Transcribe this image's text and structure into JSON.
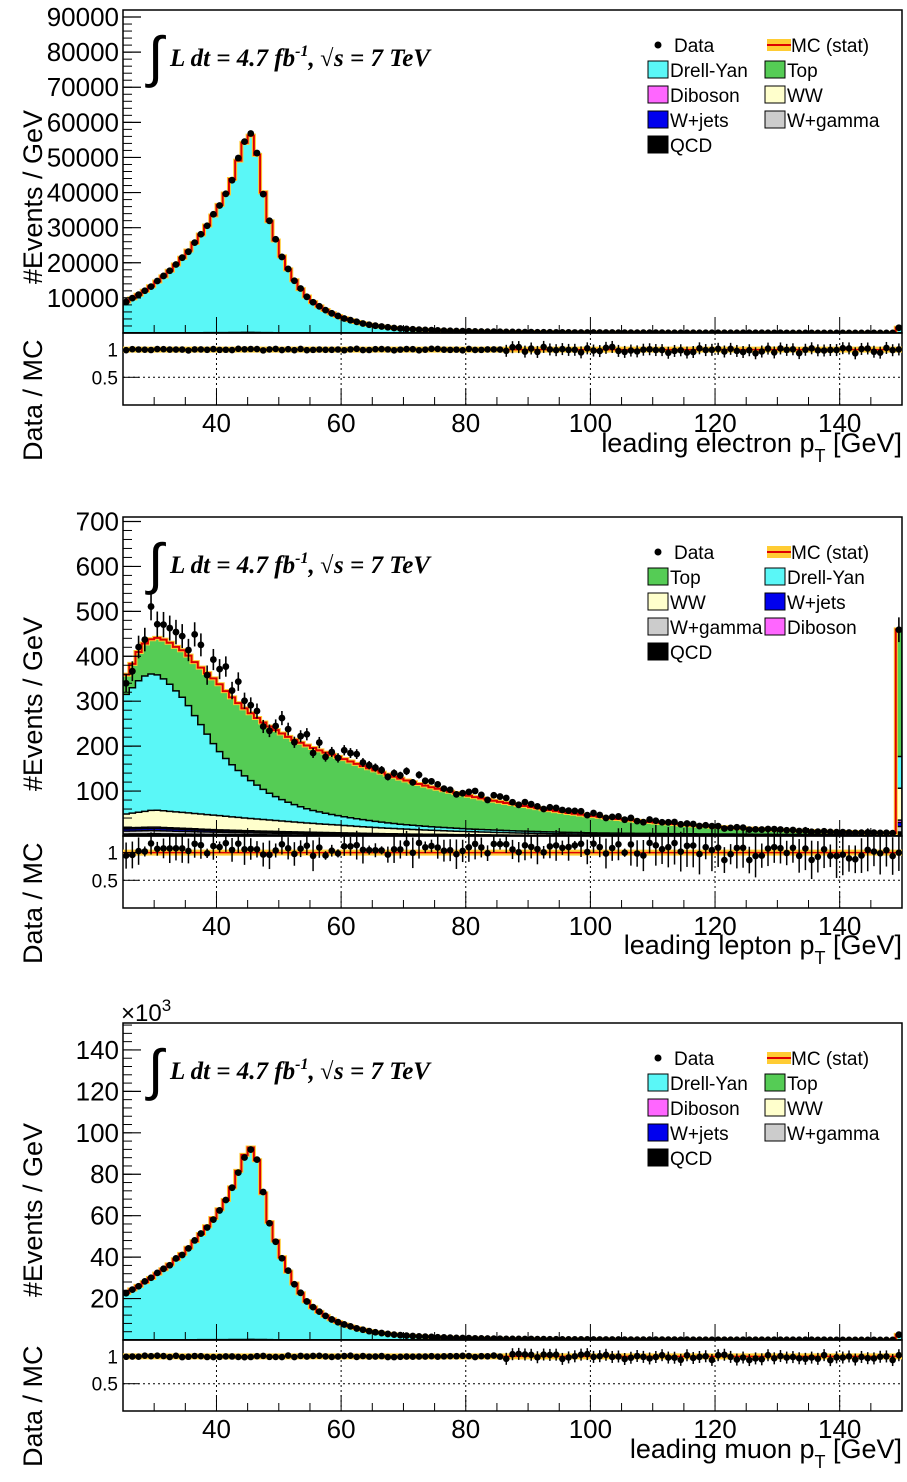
{
  "colors": {
    "drell_yan": "#5af7f7",
    "top": "#55cc55",
    "diboson": "#ff66ff",
    "ww": "#ffffcc",
    "wjets": "#0000ee",
    "wgamma": "#cccccc",
    "qcd": "#000000",
    "mc_line": "#dd0000",
    "mc_band": "#ffcc33"
  },
  "lumi_text": "L dt = 4.7 fb",
  "lumi_exp": "-1",
  "energy_text": "s = 7 TeV",
  "integral_symbol": "∫",
  "sqrt_symbol": "√",
  "ratio_ylabel": "Data / MC",
  "main_ylabel": "#Events / GeV",
  "chart_data": [
    {
      "type": "bar",
      "stacked_histogram": true,
      "title": "",
      "xlabel": "leading electron p",
      "xlabel_sub": "T",
      "xlabel_unit": " [GeV]",
      "ylabel": "#Events / GeV",
      "xlim": [
        25,
        150
      ],
      "ylim": [
        0,
        92000
      ],
      "y_multiplier": "",
      "yticks": [
        10000,
        20000,
        30000,
        40000,
        50000,
        60000,
        70000,
        80000,
        90000
      ],
      "xticks": [
        40,
        60,
        80,
        100,
        120,
        140
      ],
      "ratio_ylim": [
        0,
        1.3
      ],
      "ratio_yticks": [
        0.5,
        1
      ],
      "legend": [
        {
          "label": "Data",
          "kind": "data"
        },
        {
          "label": "MC (stat)",
          "kind": "mc"
        },
        {
          "label": "Drell-Yan",
          "kind": "fill",
          "color": "drell_yan"
        },
        {
          "label": "Top",
          "kind": "fill",
          "color": "top"
        },
        {
          "label": "Diboson",
          "kind": "fill",
          "color": "diboson"
        },
        {
          "label": "WW",
          "kind": "fill",
          "color": "ww"
        },
        {
          "label": "W+jets",
          "kind": "fill",
          "color": "wjets"
        },
        {
          "label": "W+gamma",
          "kind": "fill",
          "color": "wgamma"
        },
        {
          "label": "QCD",
          "kind": "fill",
          "color": "qcd"
        }
      ],
      "bin_width": 1,
      "total_mc_anchors": [
        [
          25,
          8500
        ],
        [
          30,
          14000
        ],
        [
          35,
          22500
        ],
        [
          40,
          35000
        ],
        [
          42,
          41500
        ],
        [
          44,
          52000
        ],
        [
          45,
          56500
        ],
        [
          46,
          56000
        ],
        [
          47,
          46000
        ],
        [
          48,
          35000
        ],
        [
          50,
          24000
        ],
        [
          52,
          16500
        ],
        [
          55,
          9500
        ],
        [
          60,
          4500
        ],
        [
          65,
          2200
        ],
        [
          70,
          1200
        ],
        [
          80,
          500
        ],
        [
          90,
          250
        ],
        [
          100,
          130
        ],
        [
          120,
          60
        ],
        [
          149,
          30
        ]
      ],
      "data_scale": 1.0,
      "overflow": 1500,
      "ratio_pattern": "electron",
      "series": [
        {
          "name": "Drell-Yan",
          "fraction": 0.997
        },
        {
          "name": "Top",
          "fraction": 0.002
        },
        {
          "name": "Diboson",
          "fraction": 0.0005
        },
        {
          "name": "WW",
          "fraction": 0.0003
        },
        {
          "name": "W+jets",
          "fraction": 0.0001
        },
        {
          "name": "W+gamma",
          "fraction": 0.0001
        },
        {
          "name": "QCD",
          "fraction": 0.0
        }
      ]
    },
    {
      "type": "bar",
      "stacked_histogram": true,
      "title": "",
      "xlabel": "leading lepton p",
      "xlabel_sub": "T",
      "xlabel_unit": " [GeV]",
      "ylabel": "#Events / GeV",
      "xlim": [
        25,
        150
      ],
      "ylim": [
        0,
        710
      ],
      "y_multiplier": "",
      "yticks": [
        100,
        200,
        300,
        400,
        500,
        600,
        700
      ],
      "xticks": [
        40,
        60,
        80,
        100,
        120,
        140
      ],
      "ratio_ylim": [
        0,
        1.3
      ],
      "ratio_yticks": [
        0.5,
        1
      ],
      "legend": [
        {
          "label": "Data",
          "kind": "data"
        },
        {
          "label": "MC (stat)",
          "kind": "mc"
        },
        {
          "label": "Top",
          "kind": "fill",
          "color": "top"
        },
        {
          "label": "Drell-Yan",
          "kind": "fill",
          "color": "drell_yan"
        },
        {
          "label": "WW",
          "kind": "fill",
          "color": "ww"
        },
        {
          "label": "W+jets",
          "kind": "fill",
          "color": "wjets"
        },
        {
          "label": "W+gamma",
          "kind": "fill",
          "color": "wgamma"
        },
        {
          "label": "Diboson",
          "kind": "fill",
          "color": "diboson"
        },
        {
          "label": "QCD",
          "kind": "fill",
          "color": "qcd"
        }
      ],
      "bin_width": 1,
      "emu": {
        "dy": [
          [
            25,
            260
          ],
          [
            28,
            300
          ],
          [
            30,
            305
          ],
          [
            32,
            290
          ],
          [
            35,
            250
          ],
          [
            38,
            190
          ],
          [
            40,
            150
          ],
          [
            43,
            110
          ],
          [
            46,
            80
          ],
          [
            50,
            50
          ],
          [
            55,
            30
          ],
          [
            60,
            20
          ],
          [
            70,
            10
          ],
          [
            80,
            6
          ],
          [
            100,
            3
          ],
          [
            149,
            1
          ]
        ],
        "top": [
          [
            25,
            40
          ],
          [
            28,
            70
          ],
          [
            30,
            80
          ],
          [
            33,
            95
          ],
          [
            36,
            115
          ],
          [
            40,
            150
          ],
          [
            45,
            150
          ],
          [
            50,
            148
          ],
          [
            55,
            140
          ],
          [
            60,
            130
          ],
          [
            65,
            115
          ],
          [
            70,
            100
          ],
          [
            80,
            75
          ],
          [
            90,
            55
          ],
          [
            100,
            38
          ],
          [
            110,
            25
          ],
          [
            120,
            16
          ],
          [
            130,
            10
          ],
          [
            140,
            6
          ],
          [
            149,
            4
          ]
        ],
        "ww": [
          [
            25,
            30
          ],
          [
            30,
            38
          ],
          [
            35,
            35
          ],
          [
            40,
            32
          ],
          [
            50,
            24
          ],
          [
            60,
            17
          ],
          [
            70,
            11
          ],
          [
            80,
            7
          ],
          [
            100,
            3
          ],
          [
            149,
            1
          ]
        ],
        "other": [
          [
            25,
            18
          ],
          [
            30,
            20
          ],
          [
            35,
            17
          ],
          [
            40,
            14
          ],
          [
            50,
            10
          ],
          [
            60,
            7
          ],
          [
            80,
            3
          ],
          [
            100,
            1
          ],
          [
            149,
            0.5
          ]
        ]
      },
      "data_scale": 1.06,
      "overflow": 460,
      "ratio_pattern": "lepton",
      "series": [
        {
          "name": "Top"
        },
        {
          "name": "Drell-Yan"
        },
        {
          "name": "WW"
        },
        {
          "name": "W+jets"
        },
        {
          "name": "W+gamma"
        },
        {
          "name": "Diboson"
        },
        {
          "name": "QCD"
        }
      ]
    },
    {
      "type": "bar",
      "stacked_histogram": true,
      "title": "",
      "xlabel": "leading muon p",
      "xlabel_sub": "T",
      "xlabel_unit": " [GeV]",
      "ylabel": "#Events / GeV",
      "xlim": [
        25,
        150
      ],
      "ylim": [
        0,
        153
      ],
      "y_multiplier": "×10",
      "y_multiplier_exp": "3",
      "yticks": [
        20,
        40,
        60,
        80,
        100,
        120,
        140
      ],
      "xticks": [
        40,
        60,
        80,
        100,
        120,
        140
      ],
      "ratio_ylim": [
        0,
        1.3
      ],
      "ratio_yticks": [
        0.5,
        1
      ],
      "legend": [
        {
          "label": "Data",
          "kind": "data"
        },
        {
          "label": "MC (stat)",
          "kind": "mc"
        },
        {
          "label": "Drell-Yan",
          "kind": "fill",
          "color": "drell_yan"
        },
        {
          "label": "Top",
          "kind": "fill",
          "color": "top"
        },
        {
          "label": "Diboson",
          "kind": "fill",
          "color": "diboson"
        },
        {
          "label": "WW",
          "kind": "fill",
          "color": "ww"
        },
        {
          "label": "W+jets",
          "kind": "fill",
          "color": "wjets"
        },
        {
          "label": "W+gamma",
          "kind": "fill",
          "color": "wgamma"
        },
        {
          "label": "QCD",
          "kind": "fill",
          "color": "qcd"
        }
      ],
      "bin_width": 1,
      "total_mc_anchors": [
        [
          25,
          22
        ],
        [
          30,
          31
        ],
        [
          35,
          43
        ],
        [
          40,
          61
        ],
        [
          42,
          70
        ],
        [
          44,
          86
        ],
        [
          45,
          93
        ],
        [
          46,
          93
        ],
        [
          47,
          81
        ],
        [
          48,
          62
        ],
        [
          50,
          44
        ],
        [
          52,
          30
        ],
        [
          55,
          17
        ],
        [
          60,
          8
        ],
        [
          65,
          4
        ],
        [
          70,
          2.2
        ],
        [
          80,
          0.9
        ],
        [
          90,
          0.45
        ],
        [
          100,
          0.25
        ],
        [
          120,
          0.12
        ],
        [
          149,
          0.06
        ]
      ],
      "data_scale": 1.0,
      "overflow": 2.5,
      "ratio_pattern": "muon",
      "series": [
        {
          "name": "Drell-Yan",
          "fraction": 0.997
        },
        {
          "name": "Top",
          "fraction": 0.002
        },
        {
          "name": "Diboson",
          "fraction": 0.0005
        },
        {
          "name": "WW",
          "fraction": 0.0003
        },
        {
          "name": "W+jets",
          "fraction": 0.0001
        },
        {
          "name": "W+gamma",
          "fraction": 0.0001
        },
        {
          "name": "QCD",
          "fraction": 0.0
        }
      ]
    }
  ]
}
